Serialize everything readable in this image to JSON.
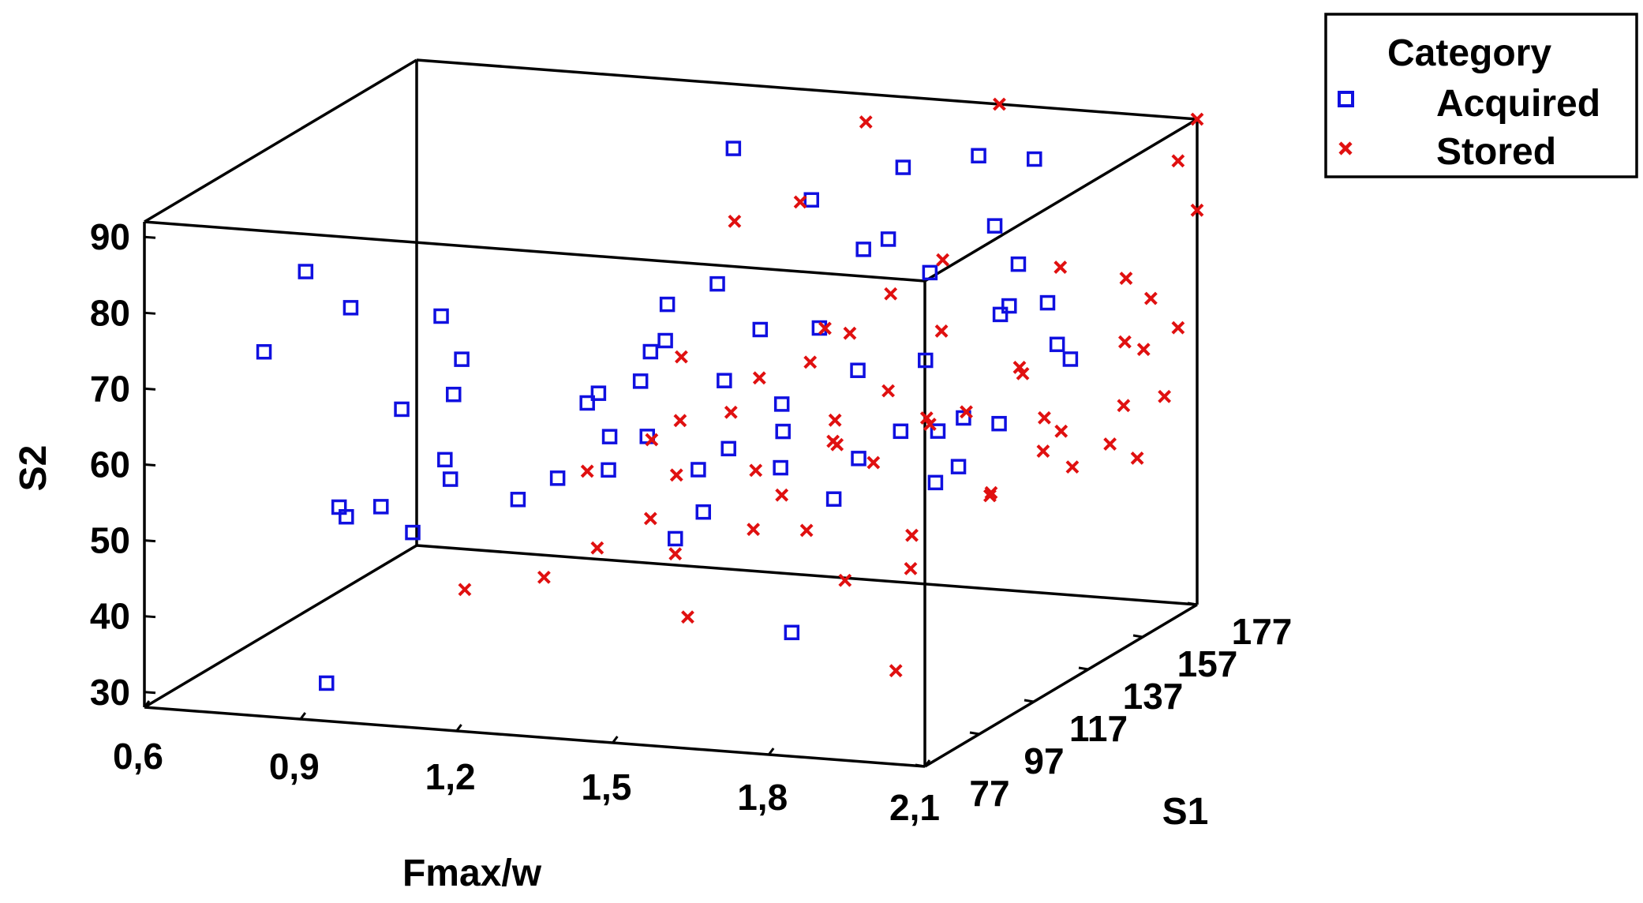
{
  "chart_data": {
    "type": "scatter3d",
    "title": "",
    "x_axis": {
      "label": "Fmax/w",
      "range": [
        0.6,
        2.1
      ],
      "ticks": [
        "0,6",
        "0,9",
        "1,2",
        "1,5",
        "1,8",
        "2,1"
      ],
      "tick_values": [
        0.6,
        0.9,
        1.2,
        1.5,
        1.8,
        2.1
      ]
    },
    "y_axis": {
      "label": "S1",
      "range": [
        77,
        177
      ],
      "ticks": [
        "77",
        "97",
        "117",
        "137",
        "157",
        "177"
      ],
      "tick_values": [
        77,
        97,
        117,
        137,
        157,
        177
      ]
    },
    "z_axis": {
      "label": "S2",
      "range": [
        28,
        92
      ],
      "ticks": [
        "30",
        "40",
        "50",
        "60",
        "70",
        "80",
        "90"
      ],
      "tick_values": [
        30,
        40,
        50,
        60,
        70,
        80,
        90
      ]
    },
    "grid": false,
    "legend": {
      "title": "Category",
      "position": "top-right",
      "entries": [
        {
          "name": "Acquired",
          "marker": "square",
          "color": "#1010e0"
        },
        {
          "name": "Stored",
          "marker": "x",
          "color": "#e01010"
        }
      ]
    },
    "series": [
      {
        "name": "Acquired",
        "marker": "square",
        "color": "#1010e0",
        "points": [
          [
            0.95,
            77,
            33
          ],
          [
            0.92,
            90,
            52
          ],
          [
            0.95,
            97,
            52
          ],
          [
            0.88,
            95,
            52
          ],
          [
            0.88,
            118,
            60
          ],
          [
            0.85,
            105,
            76
          ],
          [
            0.8,
            98,
            82
          ],
          [
            0.72,
            98,
            71
          ],
          [
            1.1,
            80,
            53
          ],
          [
            1.12,
            90,
            58
          ],
          [
            1.12,
            88,
            61
          ],
          [
            1.1,
            95,
            68
          ],
          [
            1.1,
            98,
            72
          ],
          [
            1.05,
            100,
            77
          ],
          [
            1.25,
            90,
            56
          ],
          [
            1.2,
            125,
            61
          ],
          [
            1.25,
            135,
            62
          ],
          [
            1.3,
            110,
            66
          ],
          [
            1.35,
            125,
            70
          ],
          [
            1.4,
            110,
            72
          ],
          [
            1.38,
            120,
            76
          ],
          [
            1.45,
            125,
            78
          ],
          [
            1.42,
            105,
            62
          ],
          [
            1.5,
            118,
            67
          ],
          [
            1.48,
            135,
            70
          ],
          [
            1.55,
            110,
            60
          ],
          [
            1.6,
            120,
            64
          ],
          [
            1.5,
            100,
            50
          ],
          [
            1.62,
            130,
            72
          ],
          [
            1.58,
            95,
            55
          ],
          [
            1.65,
            110,
            58
          ],
          [
            1.7,
            140,
            82
          ],
          [
            1.72,
            125,
            68
          ],
          [
            1.65,
            155,
            88
          ],
          [
            1.8,
            110,
            60
          ],
          [
            1.85,
            125,
            70
          ],
          [
            1.78,
            140,
            78
          ],
          [
            1.75,
            135,
            58
          ],
          [
            1.88,
            150,
            72
          ],
          [
            1.9,
            120,
            62
          ],
          [
            1.95,
            118,
            58
          ],
          [
            1.92,
            160,
            65
          ],
          [
            2.0,
            100,
            60
          ],
          [
            1.98,
            145,
            74
          ],
          [
            2.05,
            140,
            68
          ],
          [
            1.45,
            118,
            55
          ],
          [
            1.55,
            130,
            58
          ],
          [
            1.6,
            150,
            78
          ],
          [
            1.7,
            120,
            52
          ],
          [
            1.75,
            95,
            40
          ],
          [
            1.8,
            160,
            80
          ],
          [
            1.35,
            150,
            90
          ],
          [
            1.68,
            177,
            85
          ],
          [
            1.85,
            165,
            88
          ],
          [
            1.95,
            140,
            80
          ],
          [
            2.02,
            120,
            78
          ],
          [
            2.08,
            95,
            70
          ],
          [
            2.07,
            110,
            66
          ],
          [
            1.5,
            150,
            84
          ],
          [
            1.4,
            95,
            64
          ],
          [
            1.3,
            95,
            58
          ],
          [
            1.45,
            85,
            62
          ]
        ]
      },
      {
        "name": "Stored",
        "marker": "x",
        "color": "#e01010",
        "points": [
          [
            1.2,
            80,
            46
          ],
          [
            1.3,
            90,
            46
          ],
          [
            1.35,
            100,
            48
          ],
          [
            1.4,
            110,
            50
          ],
          [
            1.5,
            100,
            48
          ],
          [
            1.55,
            95,
            41
          ],
          [
            1.6,
            120,
            52
          ],
          [
            1.7,
            110,
            50
          ],
          [
            1.8,
            105,
            45
          ],
          [
            1.9,
            110,
            46
          ],
          [
            1.95,
            95,
            36
          ],
          [
            2.0,
            120,
            54
          ],
          [
            2.05,
            130,
            58
          ],
          [
            1.45,
            130,
            60
          ],
          [
            1.55,
            140,
            65
          ],
          [
            1.65,
            130,
            60
          ],
          [
            1.7,
            140,
            62
          ],
          [
            1.75,
            150,
            68
          ],
          [
            1.85,
            140,
            60
          ],
          [
            1.9,
            150,
            64
          ],
          [
            2.0,
            140,
            60
          ],
          [
            2.08,
            135,
            55
          ],
          [
            2.1,
            150,
            60
          ],
          [
            2.1,
            170,
            66
          ],
          [
            2.1,
            160,
            72
          ],
          [
            2.1,
            177,
            80
          ],
          [
            2.1,
            170,
            88
          ],
          [
            2.1,
            177,
            92
          ],
          [
            1.6,
            160,
            70
          ],
          [
            1.5,
            155,
            66
          ],
          [
            1.4,
            150,
            60
          ],
          [
            1.3,
            140,
            56
          ],
          [
            1.25,
            150,
            62
          ],
          [
            1.2,
            125,
            52
          ],
          [
            1.35,
            120,
            58
          ],
          [
            1.65,
            100,
            52
          ],
          [
            1.75,
            125,
            56
          ],
          [
            1.8,
            135,
            60
          ],
          [
            1.85,
            120,
            48
          ],
          [
            1.95,
            130,
            52
          ],
          [
            1.55,
            120,
            55
          ],
          [
            1.45,
            110,
            56
          ],
          [
            1.6,
            145,
            68
          ],
          [
            1.7,
            160,
            75
          ],
          [
            1.9,
            165,
            74
          ],
          [
            2.05,
            160,
            66
          ],
          [
            2.0,
            170,
            72
          ],
          [
            1.5,
            170,
            90
          ],
          [
            1.72,
            177,
            92
          ],
          [
            1.4,
            165,
            80
          ],
          [
            1.3,
            160,
            78
          ],
          [
            1.62,
            135,
            56
          ],
          [
            1.68,
            125,
            58
          ],
          [
            1.78,
            140,
            58
          ],
          [
            1.88,
            155,
            62
          ],
          [
            1.98,
            150,
            56
          ],
          [
            2.06,
            165,
            64
          ],
          [
            2.1,
            145,
            56
          ],
          [
            2.1,
            155,
            52
          ],
          [
            2.1,
            165,
            58
          ]
        ]
      }
    ]
  }
}
